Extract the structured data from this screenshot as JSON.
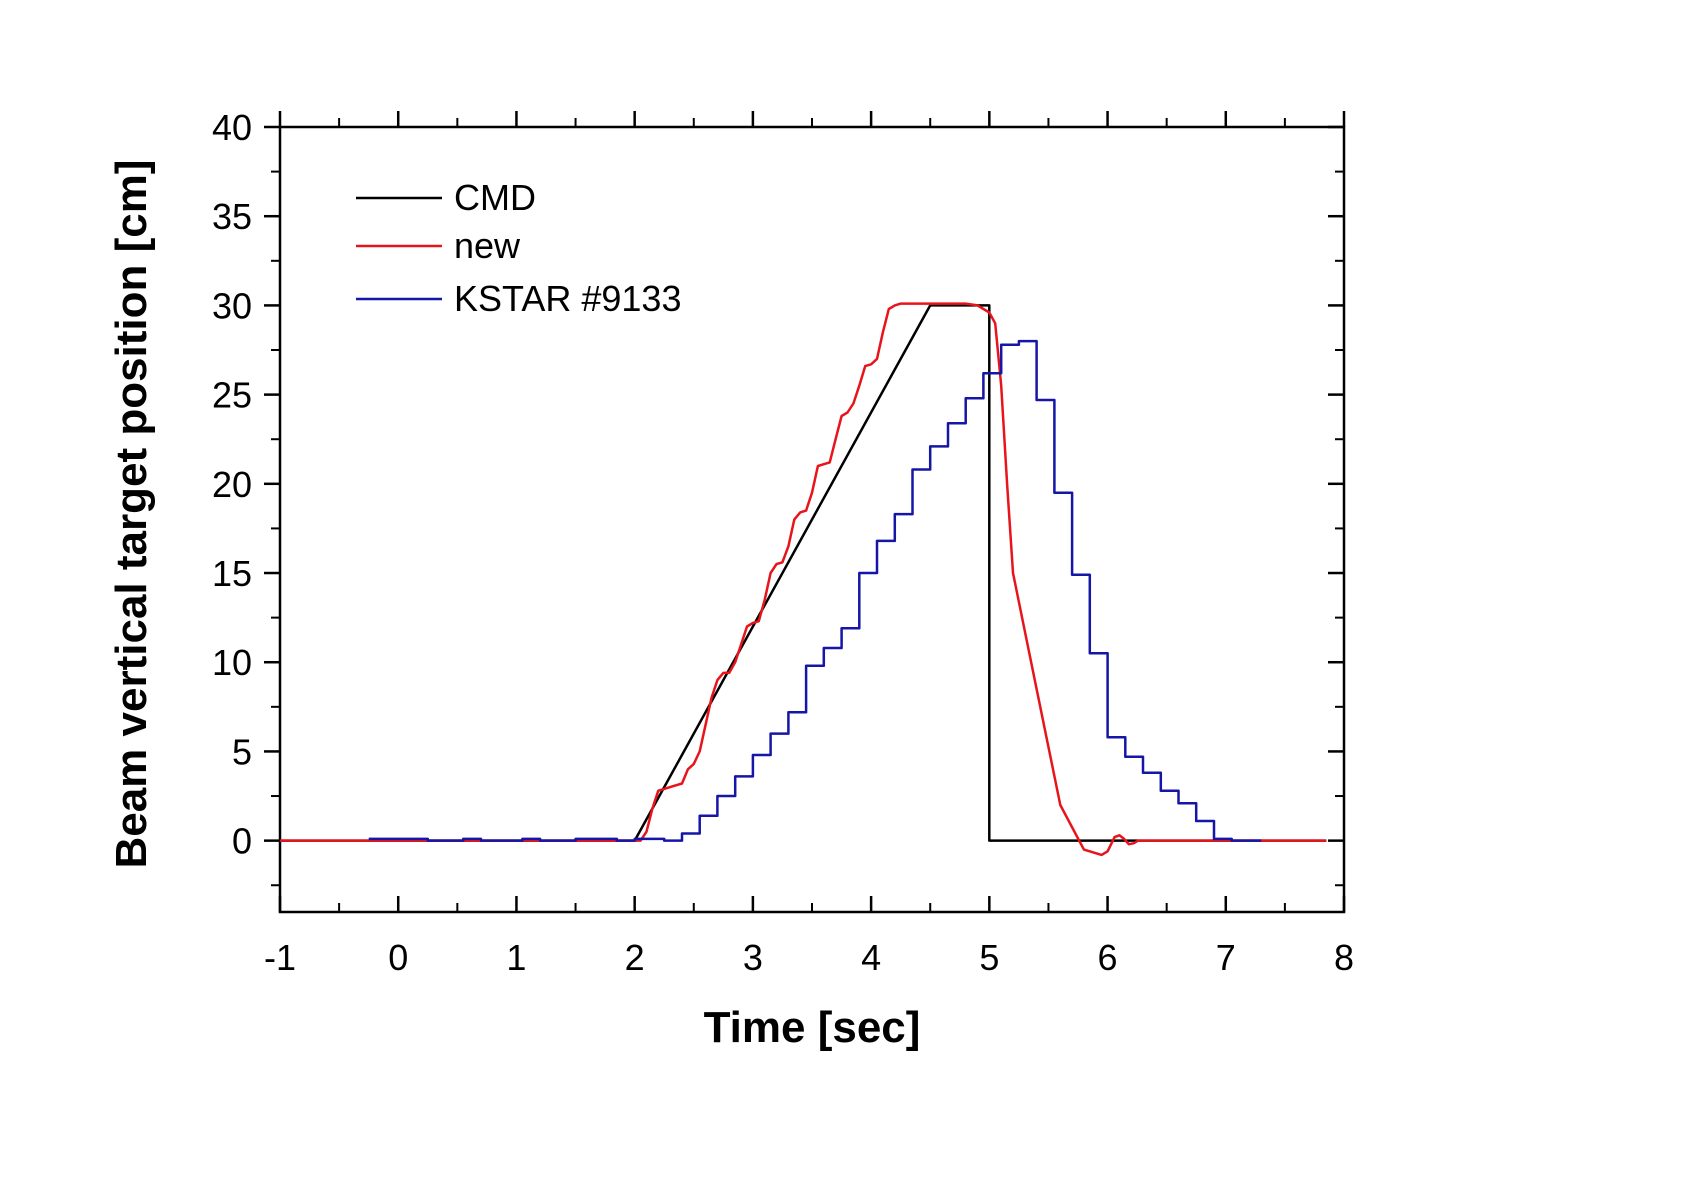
{
  "chart_data": {
    "type": "line",
    "title": "",
    "xlabel": "Time [sec]",
    "ylabel": "Beam vertical target position [cm]",
    "xlim": [
      -1,
      8
    ],
    "ylim": [
      -4,
      40
    ],
    "x_ticks": [
      -1,
      0,
      1,
      2,
      3,
      4,
      5,
      6,
      7,
      8
    ],
    "x_tick_labels": [
      "-1",
      "0",
      "1",
      "2",
      "3",
      "4",
      "5",
      "6",
      "7",
      "8"
    ],
    "y_ticks": [
      0,
      5,
      10,
      15,
      20,
      25,
      30,
      35,
      40
    ],
    "y_tick_labels": [
      "0",
      "5",
      "10",
      "15",
      "20",
      "25",
      "30",
      "35",
      "40"
    ],
    "grid": false,
    "legend_position": "top-left",
    "series": [
      {
        "name": "CMD",
        "color": "#000000",
        "x": [
          -1,
          2.0,
          4.5,
          5.0,
          5.0,
          7.85
        ],
        "y": [
          0,
          0,
          30,
          30,
          0,
          0
        ]
      },
      {
        "name": "new",
        "color": "#e8141b",
        "x": [
          -1,
          2.05,
          2.1,
          2.15,
          2.2,
          2.25,
          2.3,
          2.4,
          2.45,
          2.5,
          2.55,
          2.6,
          2.65,
          2.7,
          2.75,
          2.8,
          2.85,
          2.9,
          2.95,
          3.0,
          3.05,
          3.1,
          3.15,
          3.2,
          3.25,
          3.3,
          3.35,
          3.4,
          3.45,
          3.5,
          3.55,
          3.6,
          3.65,
          3.7,
          3.75,
          3.8,
          3.85,
          3.9,
          3.95,
          4.0,
          4.05,
          4.1,
          4.15,
          4.2,
          4.25,
          4.3,
          4.35,
          4.4,
          4.45,
          4.5,
          4.55,
          4.6,
          4.7,
          4.8,
          4.9,
          5.0,
          5.05,
          5.1,
          5.15,
          5.2,
          5.4,
          5.6,
          5.8,
          5.95,
          6.0,
          6.03,
          6.06,
          6.1,
          6.14,
          6.18,
          6.22,
          6.26,
          6.3,
          7.85
        ],
        "y": [
          0,
          0,
          0.5,
          1.8,
          2.8,
          2.9,
          3.0,
          3.2,
          4.0,
          4.3,
          5.0,
          6.5,
          8.0,
          9.0,
          9.4,
          9.4,
          10.0,
          11.0,
          12.0,
          12.2,
          12.3,
          13.5,
          15.0,
          15.5,
          15.6,
          16.5,
          18.0,
          18.4,
          18.5,
          19.5,
          21.0,
          21.1,
          21.2,
          22.5,
          23.8,
          24.0,
          24.5,
          25.5,
          26.6,
          26.7,
          27.0,
          28.5,
          29.8,
          30.0,
          30.1,
          30.1,
          30.1,
          30.1,
          30.1,
          30.1,
          30.1,
          30.1,
          30.1,
          30.1,
          30.0,
          29.6,
          29.0,
          25.5,
          20.0,
          15.0,
          8.5,
          2.0,
          -0.5,
          -0.8,
          -0.6,
          -0.2,
          0.2,
          0.3,
          0.1,
          -0.2,
          -0.15,
          0,
          0,
          0
        ]
      },
      {
        "name": "KSTAR #9133",
        "color": "#1515a8",
        "x": [
          -0.25,
          0.07,
          0.1,
          0.25,
          0.55,
          0.7,
          1.05,
          1.2,
          1.5,
          1.85,
          2.0,
          2.25,
          2.4,
          2.55,
          2.7,
          2.85,
          3.0,
          3.15,
          3.3,
          3.45,
          3.6,
          3.75,
          3.9,
          4.05,
          4.2,
          4.35,
          4.5,
          4.65,
          4.8,
          4.95,
          5.1,
          5.25,
          5.4,
          5.55,
          5.7,
          5.85,
          6.0,
          6.15,
          6.3,
          6.45,
          6.6,
          6.75,
          6.9,
          7.05,
          7.2,
          7.3
        ],
        "y": [
          0.1,
          0.1,
          0.1,
          0.0,
          0.1,
          0.0,
          0.1,
          0.0,
          0.1,
          0.0,
          0.1,
          0.0,
          0.4,
          1.4,
          2.5,
          3.6,
          4.8,
          6.0,
          7.2,
          9.8,
          10.8,
          11.9,
          15.0,
          16.8,
          18.3,
          20.8,
          22.1,
          23.4,
          24.8,
          26.2,
          27.8,
          28.0,
          24.7,
          19.5,
          14.9,
          10.5,
          5.8,
          4.7,
          3.8,
          2.8,
          2.1,
          1.1,
          0.1,
          0.0,
          0.0,
          0.0
        ]
      }
    ]
  }
}
